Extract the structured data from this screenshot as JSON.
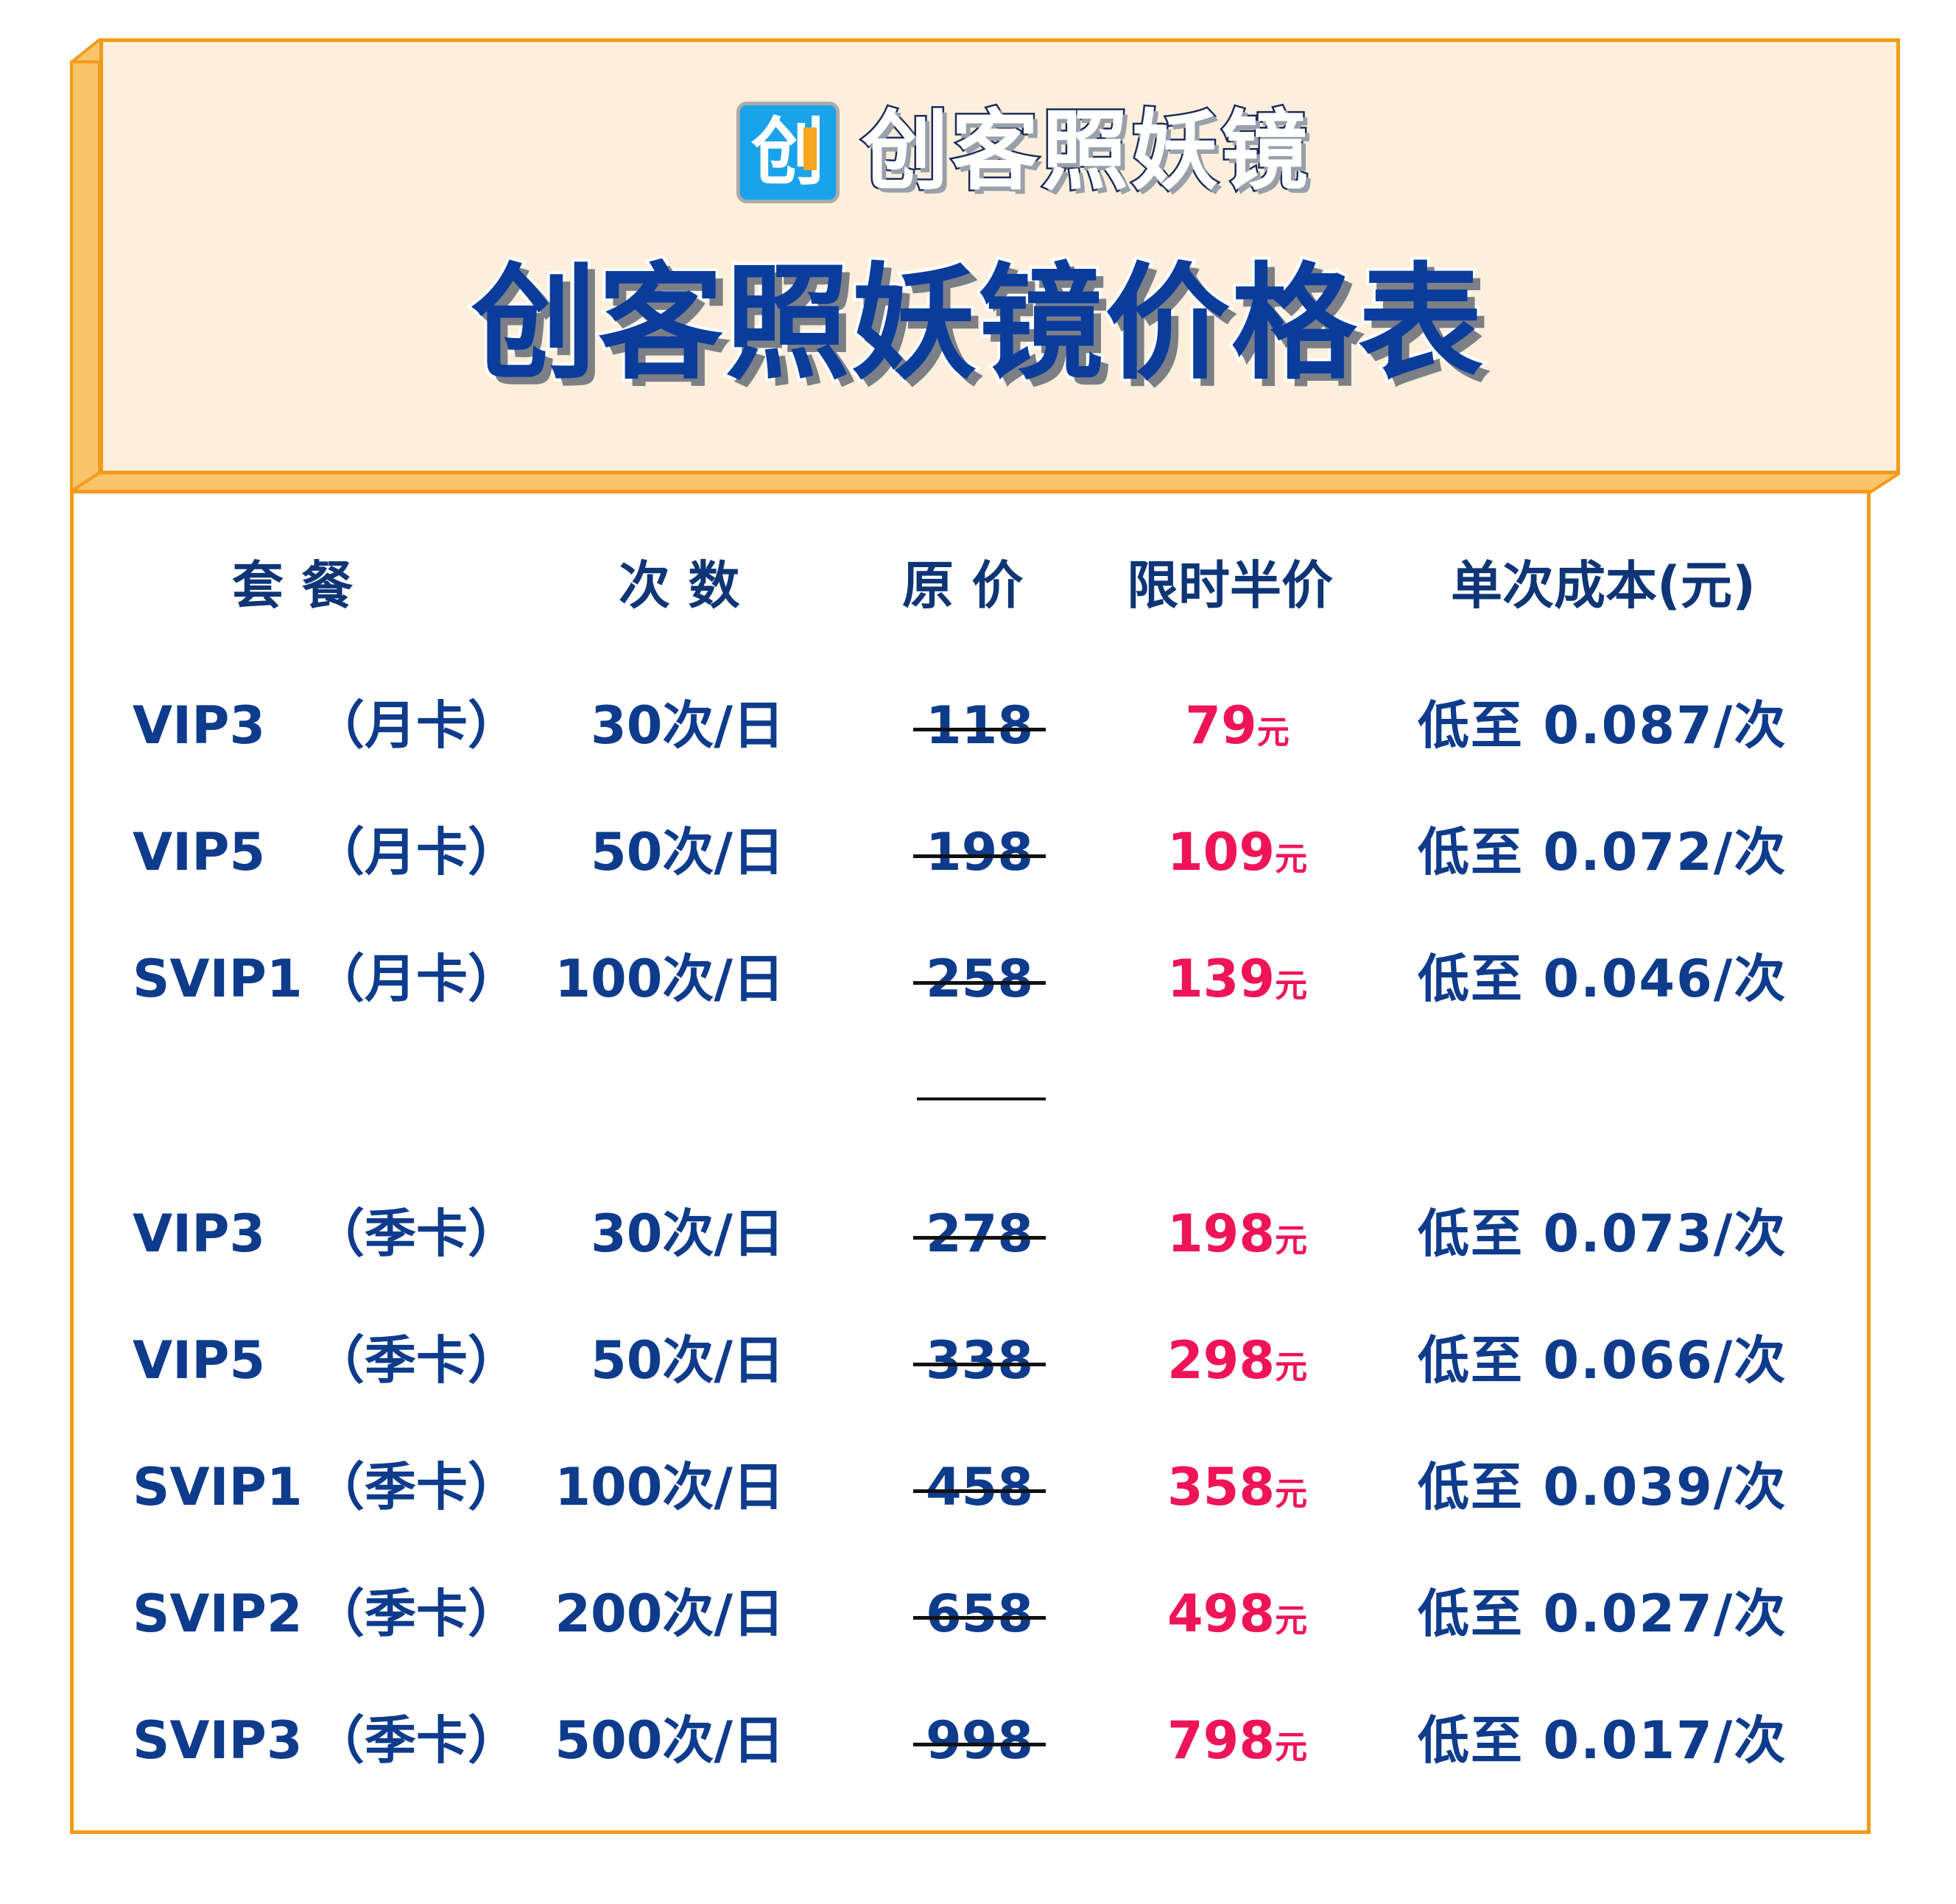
{
  "header": {
    "brand_name": "创客照妖镜",
    "logo_glyph": "创",
    "title": "创客照妖镜价格表"
  },
  "colors": {
    "border": "#f39a19",
    "header_bg": "#fdefdb",
    "text_blue": "#0e3b8c",
    "sale_red": "#ef1458",
    "logo_blue": "#1aa3ea"
  },
  "table": {
    "headers": [
      "套 餐",
      "次 数",
      "原 价",
      "限时半价",
      "单次成本(元)"
    ],
    "monthly": [
      {
        "plan": "VIP3",
        "type": "（月卡）",
        "count": "30次/日",
        "original": "118",
        "sale": "79",
        "unit": "元",
        "cost": "低至 0.087/次"
      },
      {
        "plan": "VIP5",
        "type": "（月卡）",
        "count": "50次/日",
        "original": "198",
        "sale": "109",
        "unit": "元",
        "cost": "低至 0.072/次"
      },
      {
        "plan": "SVIP1",
        "type": "（月卡）",
        "count": "100次/日",
        "original": "258",
        "sale": "139",
        "unit": "元",
        "cost": "低至 0.046/次"
      }
    ],
    "quarterly": [
      {
        "plan": "VIP3",
        "type": "（季卡）",
        "count": "30次/日",
        "original": "278",
        "sale": "198",
        "unit": "元",
        "cost": "低至 0.073/次"
      },
      {
        "plan": "VIP5",
        "type": "（季卡）",
        "count": "50次/日",
        "original": "338",
        "sale": "298",
        "unit": "元",
        "cost": "低至 0.066/次"
      },
      {
        "plan": "SVIP1",
        "type": "（季卡）",
        "count": "100次/日",
        "original": "458",
        "sale": "358",
        "unit": "元",
        "cost": "低至 0.039/次"
      },
      {
        "plan": "SVIP2",
        "type": "（季卡）",
        "count": "200次/日",
        "original": "658",
        "sale": "498",
        "unit": "元",
        "cost": "低至 0.027/次"
      },
      {
        "plan": "SVIP3",
        "type": "（季卡）",
        "count": "500次/日",
        "original": "998",
        "sale": "798",
        "unit": "元",
        "cost": "低至 0.017/次"
      }
    ]
  }
}
